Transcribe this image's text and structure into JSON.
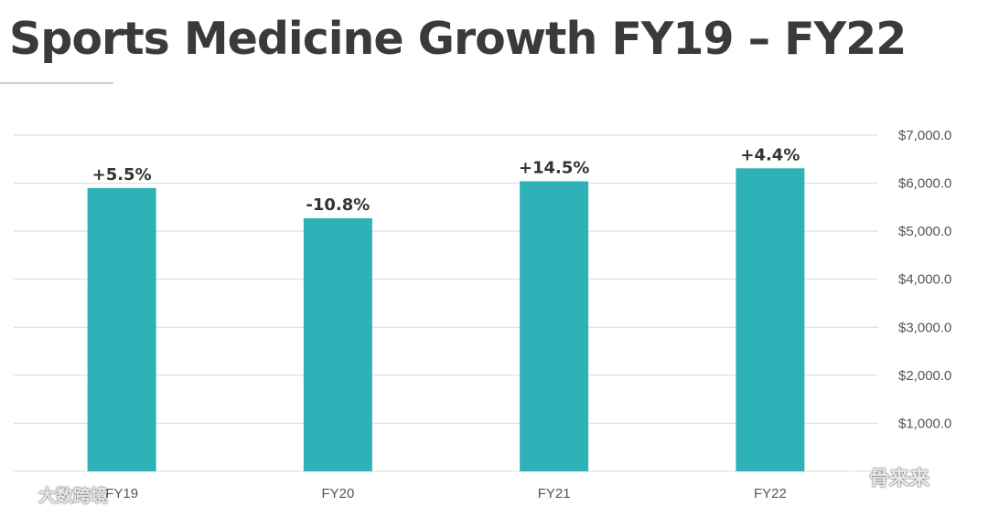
{
  "title": "Sports Medicine Growth FY19 – FY22",
  "chart_data": {
    "type": "bar",
    "title": "Sports Medicine Growth FY19 – FY22",
    "categories": [
      "FY19",
      "FY20",
      "FY21",
      "FY22"
    ],
    "values": [
      5900,
      5270,
      6040,
      6310
    ],
    "data_labels": [
      "+5.5%",
      "-10.8%",
      "+14.5%",
      "+4.4%"
    ],
    "yticks": [
      "$1,000.0",
      "$2,000.0",
      "$3,000.0",
      "$4,000.0",
      "$5,000.0",
      "$6,000.0",
      "$7,000.0"
    ],
    "ytick_values": [
      1000,
      2000,
      3000,
      4000,
      5000,
      6000,
      7000
    ],
    "ylim": [
      0,
      7000
    ],
    "xlabel": "",
    "ylabel": "",
    "y_axis_side": "right",
    "grid": true,
    "bar_color": "#2fb2b7",
    "label_color": "#333333"
  },
  "watermarks": {
    "left": "大数跨境",
    "right": "骨来来"
  }
}
